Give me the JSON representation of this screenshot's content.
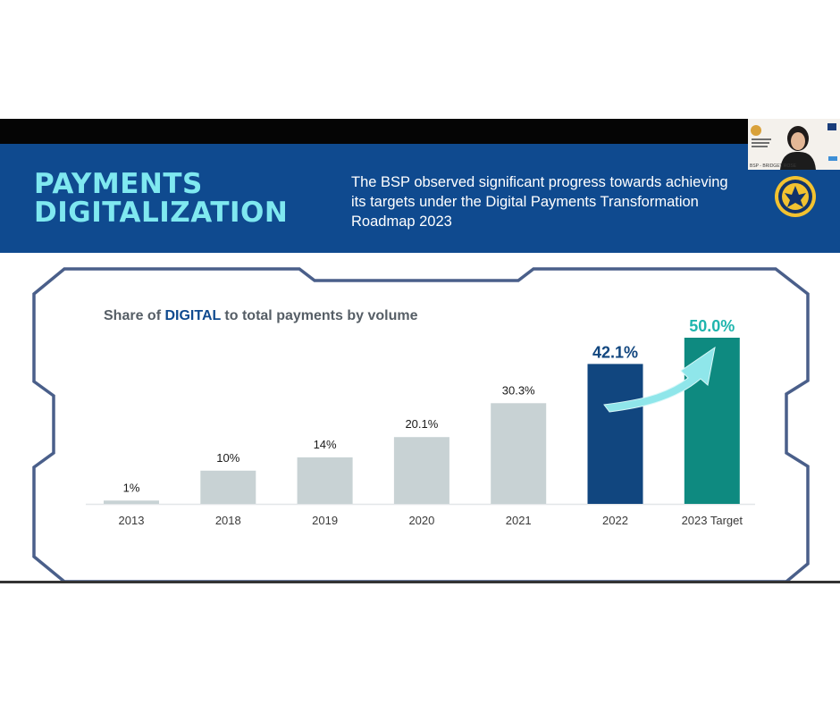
{
  "slide": {
    "title": "PAYMENTS DIGITALIZATION",
    "subtitle": "The BSP observed significant progress towards achieving its targets under the Digital Payments Transformation Roadmap 2023"
  },
  "webcam": {
    "label": "BSP - BRIDGET ROSE"
  },
  "chart_heading": {
    "before": "Share of ",
    "emphasis": "DIGITAL",
    "after": " to total payments by volume"
  },
  "chart_data": {
    "type": "bar",
    "title": "Share of DIGITAL to total payments by volume",
    "categories": [
      "2013",
      "2018",
      "2019",
      "2020",
      "2021",
      "2022",
      "2023 Target"
    ],
    "values": [
      1,
      10,
      14,
      20.1,
      30.3,
      42.1,
      50.0
    ],
    "data_labels": [
      "1%",
      "10%",
      "14%",
      "20.1%",
      "30.3%",
      "42.1%",
      "50.0%"
    ],
    "ylim": [
      0,
      50
    ],
    "grid": false,
    "colors": {
      "default_bar": "#c8d2d4",
      "highlight_2022": "#11467f",
      "target_2023": "#0e8a80",
      "arrow": "#8fe6ea",
      "label_2022": "#11467f",
      "label_2023": "#1fb5ae"
    }
  },
  "colors": {
    "banner": "#0f4a8f",
    "title": "#7fe8f0",
    "frame": "#4a5f8a"
  },
  "icons": [
    "seal-icon",
    "webcam-thumbnail"
  ]
}
